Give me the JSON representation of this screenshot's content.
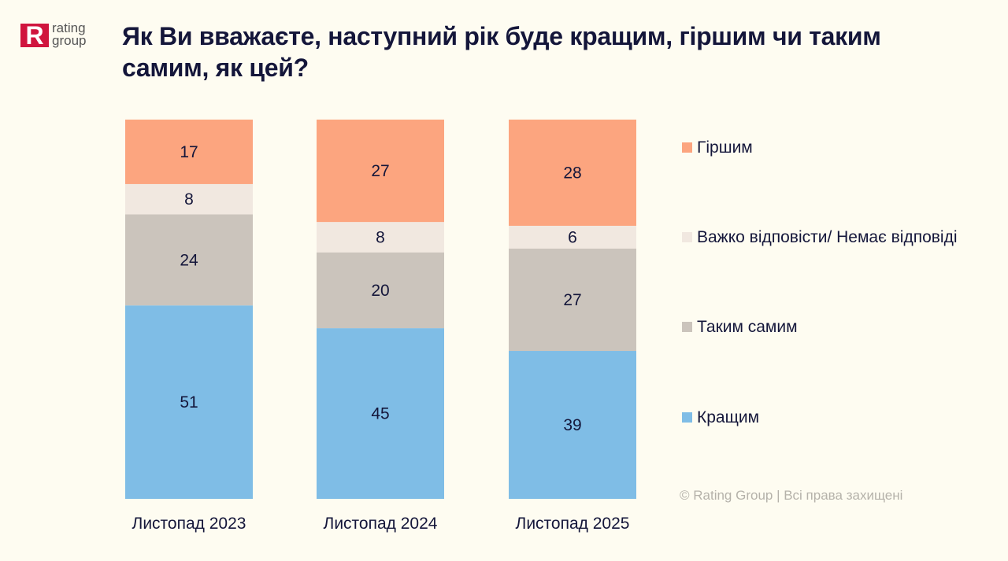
{
  "logo": {
    "letter": "R",
    "line1": "rating",
    "line2": "group"
  },
  "title": "Як Ви вважаєте, наступний рік буде кращим, гіршим чи таким самим, як цей?",
  "copyright": "© Rating Group | Всі права захищені",
  "chart_data": {
    "type": "bar",
    "stacked": true,
    "categories": [
      "Листопад 2023",
      "Листопад 2024",
      "Листопад 2025"
    ],
    "ylim": [
      0,
      100
    ],
    "grid": false,
    "legend_position": "right",
    "series": [
      {
        "name": "Кращим",
        "values": [
          51,
          45,
          39
        ],
        "color": "#7fbde6"
      },
      {
        "name": "Таким самим",
        "values": [
          24,
          20,
          27
        ],
        "color": "#cbc4bc"
      },
      {
        "name": "Важко відповісти/ Немає відповіді",
        "values": [
          8,
          8,
          6
        ],
        "color": "#f1e8e0"
      },
      {
        "name": "Гіршим",
        "values": [
          17,
          27,
          28
        ],
        "color": "#fca57f"
      }
    ]
  }
}
